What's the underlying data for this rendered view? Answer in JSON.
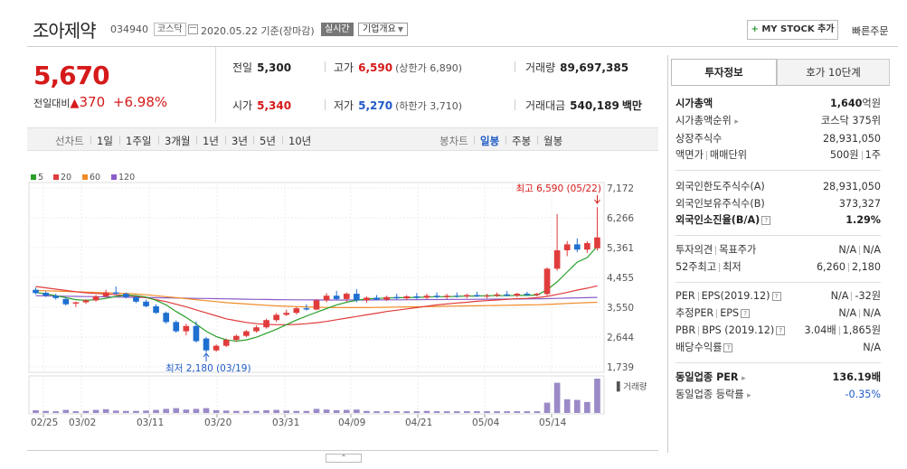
{
  "header": {
    "company_name": "조아제약",
    "code": "034940",
    "market": "코스닥",
    "date": "2020.05.22 기준(장마감)",
    "realtime_label": "실시간",
    "company_info_label": "기업개요",
    "mystock_label": "MY STOCK 추가",
    "quick_order_label": "빠른주문"
  },
  "price": {
    "current": "5,670",
    "prev_label": "전일대비",
    "change": "370",
    "change_pct": "+6.98%"
  },
  "quote": {
    "prev_close": {
      "label": "전일",
      "value": "5,300"
    },
    "high": {
      "label": "고가",
      "value": "6,590",
      "sub": "(상한가 6,890)"
    },
    "volume": {
      "label": "거래량",
      "value": "89,697,385"
    },
    "open": {
      "label": "시가",
      "value": "5,340"
    },
    "low": {
      "label": "저가",
      "value": "5,270",
      "sub": "(하한가 3,710)"
    },
    "amount": {
      "label": "거래대금",
      "value": "540,189",
      "unit": "백만"
    }
  },
  "period_tabs": {
    "line_chart": "선차트",
    "d1": "1일",
    "w1": "1주일",
    "m3": "3개월",
    "y1": "1년",
    "y3": "3년",
    "y5": "5년",
    "y10": "10년",
    "candle_chart": "봉차트",
    "daily": "일봉",
    "weekly": "주봉",
    "monthly": "월봉"
  },
  "chart_data": {
    "type": "candlestick",
    "legend": [
      {
        "name": "5",
        "color": "#2aa02a"
      },
      {
        "name": "20",
        "color": "#e03c3c"
      },
      {
        "name": "60",
        "color": "#f08c28"
      },
      {
        "name": "120",
        "color": "#8a5cc8"
      }
    ],
    "y_ticks": [
      "7,172",
      "6,266",
      "5,361",
      "4,455",
      "3,550",
      "2,644",
      "1,739"
    ],
    "ylim": [
      1739,
      7172
    ],
    "x_ticks": [
      "02/25",
      "03/02",
      "03/11",
      "03/20",
      "03/31",
      "04/09",
      "04/21",
      "05/04",
      "05/14"
    ],
    "max_annotation": "최고 6,590 (05/22)",
    "min_annotation": "최저 2,180 (03/19)",
    "volume_label": "거래량",
    "colors": {
      "up": "#e03c3c",
      "down": "#1f6fd1"
    },
    "candles": [
      [
        4080,
        4150,
        3940,
        3980
      ],
      [
        3990,
        4030,
        3860,
        3900
      ],
      [
        3900,
        3960,
        3780,
        3830
      ],
      [
        3800,
        3850,
        3600,
        3640
      ],
      [
        3660,
        3720,
        3560,
        3700
      ],
      [
        3700,
        3800,
        3650,
        3760
      ],
      [
        3760,
        3920,
        3720,
        3880
      ],
      [
        3880,
        4080,
        3840,
        4000
      ],
      [
        4000,
        4180,
        3940,
        3960
      ],
      [
        3960,
        4000,
        3820,
        3860
      ],
      [
        3860,
        3900,
        3680,
        3720
      ],
      [
        3720,
        3780,
        3550,
        3580
      ],
      [
        3580,
        3640,
        3350,
        3380
      ],
      [
        3380,
        3420,
        3050,
        3100
      ],
      [
        3100,
        3150,
        2780,
        2820
      ],
      [
        2820,
        3050,
        2700,
        2980
      ],
      [
        2980,
        3120,
        2480,
        2520
      ],
      [
        2600,
        2650,
        2180,
        2240
      ],
      [
        2240,
        2420,
        2200,
        2380
      ],
      [
        2380,
        2600,
        2340,
        2560
      ],
      [
        2560,
        2720,
        2500,
        2680
      ],
      [
        2680,
        2860,
        2640,
        2820
      ],
      [
        2820,
        3000,
        2780,
        2940
      ],
      [
        2940,
        3200,
        2900,
        3160
      ],
      [
        3160,
        3380,
        3100,
        3320
      ],
      [
        3320,
        3480,
        3280,
        3380
      ],
      [
        3380,
        3560,
        3330,
        3520
      ],
      [
        3520,
        3640,
        3450,
        3480
      ],
      [
        3480,
        3800,
        3460,
        3760
      ],
      [
        3760,
        3980,
        3700,
        3900
      ],
      [
        3900,
        4050,
        3760,
        3800
      ],
      [
        3800,
        4000,
        3720,
        3960
      ],
      [
        3960,
        4100,
        3700,
        3760
      ],
      [
        3760,
        3880,
        3680,
        3840
      ],
      [
        3840,
        3920,
        3760,
        3780
      ],
      [
        3780,
        3900,
        3740,
        3860
      ],
      [
        3860,
        3960,
        3780,
        3820
      ],
      [
        3820,
        3920,
        3760,
        3880
      ],
      [
        3880,
        3980,
        3800,
        3840
      ],
      [
        3840,
        3960,
        3790,
        3900
      ],
      [
        3900,
        4000,
        3820,
        3860
      ],
      [
        3860,
        3960,
        3800,
        3900
      ],
      [
        3900,
        4000,
        3840,
        3880
      ],
      [
        3880,
        3960,
        3820,
        3920
      ],
      [
        3920,
        4020,
        3860,
        3880
      ],
      [
        3880,
        3960,
        3820,
        3900
      ],
      [
        3900,
        4000,
        3860,
        3940
      ],
      [
        3940,
        4040,
        3880,
        3900
      ],
      [
        3900,
        3990,
        3860,
        3960
      ],
      [
        3960,
        4020,
        3900,
        3920
      ],
      [
        3920,
        3990,
        3880,
        3960
      ],
      [
        3950,
        4760,
        3900,
        4720
      ],
      [
        4720,
        6380,
        4660,
        5280
      ],
      [
        5280,
        5560,
        5100,
        5460
      ],
      [
        5460,
        5640,
        5220,
        5300
      ],
      [
        5300,
        5560,
        5200,
        5500
      ],
      [
        5340,
        6590,
        5270,
        5670
      ]
    ],
    "ma5": [
      4000,
      3960,
      3900,
      3840,
      3780,
      3760,
      3780,
      3820,
      3880,
      3920,
      3900,
      3860,
      3760,
      3620,
      3420,
      3240,
      3040,
      2820,
      2660,
      2560,
      2520,
      2560,
      2640,
      2760,
      2880,
      3020,
      3160,
      3280,
      3400,
      3510,
      3620,
      3700,
      3760,
      3800,
      3820,
      3830,
      3840,
      3840,
      3850,
      3860,
      3870,
      3870,
      3880,
      3890,
      3890,
      3900,
      3900,
      3900,
      3910,
      3910,
      3920,
      4080,
      4320,
      4620,
      4920,
      5060,
      5400
    ],
    "ma20": [
      4180,
      4140,
      4100,
      4060,
      4020,
      3990,
      3970,
      3950,
      3930,
      3910,
      3880,
      3840,
      3780,
      3720,
      3640,
      3560,
      3470,
      3380,
      3290,
      3200,
      3140,
      3090,
      3050,
      3030,
      3020,
      3020,
      3030,
      3050,
      3080,
      3120,
      3170,
      3220,
      3270,
      3320,
      3370,
      3420,
      3460,
      3500,
      3540,
      3580,
      3620,
      3650,
      3680,
      3700,
      3730,
      3750,
      3770,
      3790,
      3810,
      3820,
      3840,
      3880,
      3940,
      4000,
      4070,
      4130,
      4200
    ],
    "ma60": [
      4060,
      4050,
      4040,
      4030,
      4020,
      4010,
      4000,
      3990,
      3980,
      3970,
      3950,
      3930,
      3900,
      3870,
      3840,
      3810,
      3780,
      3750,
      3720,
      3690,
      3670,
      3650,
      3630,
      3610,
      3590,
      3580,
      3570,
      3560,
      3550,
      3545,
      3540,
      3540,
      3540,
      3540,
      3545,
      3550,
      3555,
      3560,
      3565,
      3570,
      3575,
      3580,
      3585,
      3590,
      3595,
      3600,
      3605,
      3610,
      3615,
      3620,
      3625,
      3635,
      3650,
      3665,
      3680,
      3690,
      3700
    ],
    "ma120": [
      3900,
      3895,
      3890,
      3885,
      3880,
      3875,
      3870,
      3865,
      3860,
      3855,
      3850,
      3845,
      3840,
      3835,
      3830,
      3825,
      3820,
      3815,
      3810,
      3805,
      3800,
      3795,
      3790,
      3785,
      3780,
      3778,
      3776,
      3774,
      3772,
      3770,
      3770,
      3770,
      3770,
      3770,
      3772,
      3774,
      3776,
      3778,
      3780,
      3782,
      3784,
      3786,
      3788,
      3790,
      3792,
      3794,
      3796,
      3798,
      3800,
      3802,
      3804,
      3810,
      3818,
      3826,
      3834,
      3842,
      3850
    ],
    "volume": [
      8,
      6,
      5,
      9,
      5,
      6,
      9,
      11,
      7,
      6,
      6,
      7,
      9,
      12,
      14,
      10,
      12,
      14,
      8,
      7,
      6,
      6,
      6,
      8,
      9,
      7,
      6,
      6,
      12,
      10,
      8,
      9,
      10,
      6,
      5,
      5,
      5,
      5,
      5,
      6,
      5,
      5,
      5,
      5,
      5,
      5,
      5,
      5,
      5,
      5,
      5,
      30,
      88,
      40,
      38,
      32,
      100
    ]
  },
  "right": {
    "tab_invest": "투자정보",
    "tab_orderbook": "호가 10단계",
    "market_cap": {
      "label": "시가총액",
      "value": "1,640",
      "unit": "억원"
    },
    "cap_rank": {
      "label": "시가총액순위",
      "value": "코스닥 375위"
    },
    "shares": {
      "label": "상장주식수",
      "value": "28,931,050"
    },
    "par_unit": {
      "label": "액면가",
      "label2": "매매단위",
      "value": "500원",
      "value2": "1주"
    },
    "foreign_limit": {
      "label": "외국인한도주식수(A)",
      "value": "28,931,050"
    },
    "foreign_hold": {
      "label": "외국인보유주식수(B)",
      "value": "373,327"
    },
    "foreign_rate": {
      "label": "외국인소진율(B/A)",
      "value": "1.29%"
    },
    "opinion": {
      "label": "투자의견",
      "label2": "목표주가",
      "value": "N/A",
      "value2": "N/A"
    },
    "w52": {
      "label": "52주최고",
      "label2": "최저",
      "value": "6,260",
      "value2": "2,180"
    },
    "per_eps": {
      "label": "PER",
      "label2": "EPS(2019.12)",
      "value": "N/A",
      "value2": "-32원"
    },
    "est_per": {
      "label": "추정PER",
      "label2": "EPS",
      "value": "N/A",
      "value2": "N/A"
    },
    "pbr_bps": {
      "label": "PBR",
      "label2": "BPS (2019.12)",
      "value": "3.04배",
      "value2": "1,865원"
    },
    "dividend": {
      "label": "배당수익률",
      "value": "N/A"
    },
    "sector_per": {
      "label": "동일업종 PER",
      "value": "136.19배"
    },
    "sector_rate": {
      "label": "동일업종 등락률",
      "value": "-0.35%"
    }
  }
}
